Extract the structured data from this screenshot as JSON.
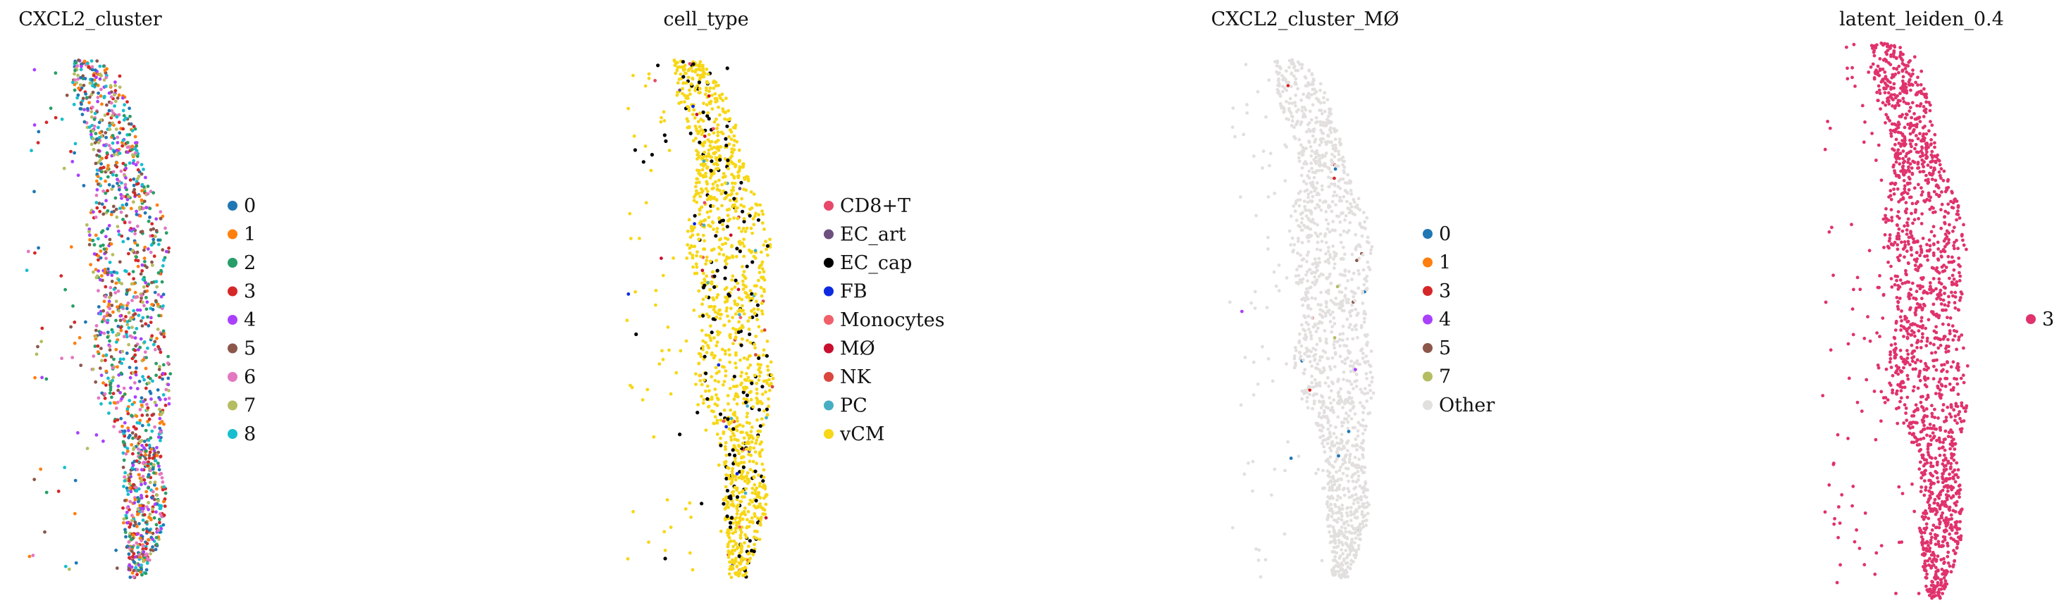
{
  "chart_data": [
    {
      "type": "scatter",
      "title": "CXCL2_cluster",
      "legend_placement": "right",
      "legend": [
        {
          "label": "0",
          "color": "#1f77b4"
        },
        {
          "label": "1",
          "color": "#ff7f0e"
        },
        {
          "label": "2",
          "color": "#279e68"
        },
        {
          "label": "3",
          "color": "#d62728"
        },
        {
          "label": "4",
          "color": "#aa40fc"
        },
        {
          "label": "5",
          "color": "#8c564b"
        },
        {
          "label": "6",
          "color": "#e377c2"
        },
        {
          "label": "7",
          "color": "#b5bd61"
        },
        {
          "label": "8",
          "color": "#17becf"
        }
      ],
      "background_color": null,
      "point_mix": "all"
    },
    {
      "type": "scatter",
      "title": "cell_type",
      "legend_placement": "right",
      "legend": [
        {
          "label": "CD8+T",
          "color": "#e8486a"
        },
        {
          "label": "EC_art",
          "color": "#6e4f7e"
        },
        {
          "label": "EC_cap",
          "color": "#000000"
        },
        {
          "label": "FB",
          "color": "#0d2ae0"
        },
        {
          "label": "Monocytes",
          "color": "#f0606a"
        },
        {
          "label": "MØ",
          "color": "#c8102e"
        },
        {
          "label": "NK",
          "color": "#d9473e"
        },
        {
          "label": "PC",
          "color": "#45aec4"
        },
        {
          "label": "vCM",
          "color": "#f7d716"
        }
      ],
      "background_color": "#f7d716",
      "point_mix": "dominant"
    },
    {
      "type": "scatter",
      "title": "CXCL2_cluster_MØ",
      "legend_placement": "right",
      "legend": [
        {
          "label": "0",
          "color": "#1f77b4"
        },
        {
          "label": "1",
          "color": "#ff7f0e"
        },
        {
          "label": "3",
          "color": "#d62728"
        },
        {
          "label": "4",
          "color": "#aa40fc"
        },
        {
          "label": "5",
          "color": "#8c564b"
        },
        {
          "label": "7",
          "color": "#b5bd61"
        },
        {
          "label": "Other",
          "color": "#e3dfdf"
        }
      ],
      "background_color": "#e3dfdf",
      "point_mix": "sparse"
    },
    {
      "type": "scatter",
      "title": "latent_leiden_0.4",
      "legend_placement": "right",
      "legend": [
        {
          "label": "3",
          "color": "#e0326c"
        }
      ],
      "background_color": "#e0326c",
      "point_mix": "single"
    }
  ]
}
